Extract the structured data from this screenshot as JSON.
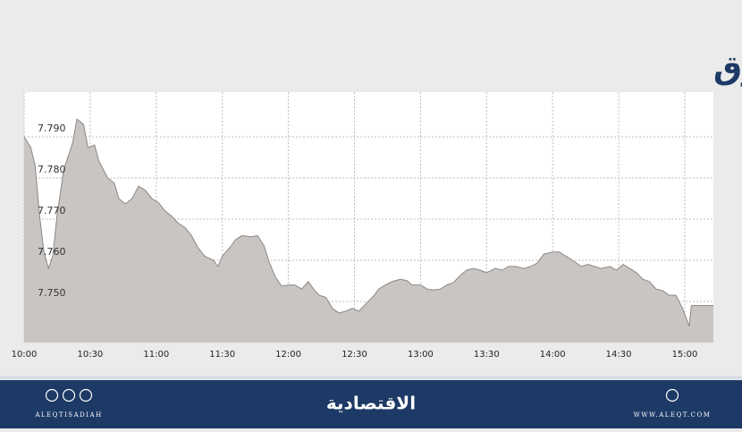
{
  "chart_data": {
    "type": "area",
    "title": "مؤشر السوق",
    "x": [
      "10:00",
      "10:03",
      "10:05",
      "10:07",
      "10:09",
      "10:11",
      "10:13",
      "10:15",
      "10:18",
      "10:22",
      "10:24",
      "10:27",
      "10:29",
      "10:32",
      "10:34",
      "10:38",
      "10:41",
      "10:43",
      "10:46",
      "10:49",
      "10:52",
      "10:55",
      "10:58",
      "11:01",
      "11:04",
      "11:07",
      "11:10",
      "11:13",
      "11:16",
      "11:19",
      "11:22",
      "11:26",
      "11:28",
      "11:30",
      "11:34",
      "11:36",
      "11:39",
      "11:43",
      "11:46",
      "11:49",
      "11:51",
      "11:54",
      "11:57",
      "12:00",
      "12:03",
      "12:06",
      "12:09",
      "12:12",
      "12:14",
      "12:17",
      "12:20",
      "12:23",
      "12:26",
      "12:29",
      "12:32",
      "12:35",
      "12:39",
      "12:41",
      "12:44",
      "12:47",
      "12:51",
      "12:54",
      "12:56",
      "13:00",
      "13:03",
      "13:06",
      "13:09",
      "13:12",
      "13:15",
      "13:18",
      "13:21",
      "13:24",
      "13:27",
      "13:30",
      "13:34",
      "13:37",
      "13:40",
      "13:43",
      "13:47",
      "13:50",
      "13:53",
      "13:56",
      "14:00",
      "14:03",
      "14:06",
      "14:09",
      "14:13",
      "14:16",
      "14:19",
      "14:22",
      "14:26",
      "14:29",
      "14:32",
      "14:35",
      "14:38",
      "14:41",
      "14:44",
      "14:47",
      "14:50",
      "14:53",
      "14:56",
      "14:59",
      "15:02",
      "15:03",
      "15:13"
    ],
    "values": [
      7.79,
      7.7874,
      7.783,
      7.771,
      7.762,
      7.758,
      7.761,
      7.771,
      7.782,
      7.7885,
      7.7943,
      7.793,
      7.7874,
      7.788,
      7.784,
      7.78,
      7.7787,
      7.775,
      7.7737,
      7.775,
      7.778,
      7.777,
      7.775,
      7.774,
      7.772,
      7.7707,
      7.769,
      7.768,
      7.766,
      7.763,
      7.761,
      7.76,
      7.7585,
      7.761,
      7.7635,
      7.765,
      7.766,
      7.7657,
      7.766,
      7.7635,
      7.76,
      7.756,
      7.7537,
      7.754,
      7.754,
      7.753,
      7.7548,
      7.7526,
      7.7515,
      7.751,
      7.7483,
      7.7472,
      7.7476,
      7.7483,
      7.7476,
      7.7493,
      7.7515,
      7.753,
      7.754,
      7.7548,
      7.7554,
      7.755,
      7.754,
      7.754,
      7.753,
      7.7528,
      7.753,
      7.754,
      7.7546,
      7.7563,
      7.7576,
      7.758,
      7.7576,
      7.757,
      7.758,
      7.7576,
      7.7585,
      7.7585,
      7.758,
      7.7585,
      7.7593,
      7.7615,
      7.762,
      7.762,
      7.761,
      7.76,
      7.7585,
      7.759,
      7.7585,
      7.758,
      7.7585,
      7.7576,
      7.759,
      7.758,
      7.757,
      7.7554,
      7.7548,
      7.753,
      7.7526,
      7.7515,
      7.7515,
      7.7483,
      7.744,
      7.749,
      7.749
    ],
    "color": "#c9c5c2",
    "line_color": "#8c8785",
    "xlim": [
      "10:00",
      "15:13"
    ],
    "xticks": [
      "10:00",
      "10:30",
      "11:00",
      "11:30",
      "12:00",
      "12:30",
      "13:00",
      "13:30",
      "14:00",
      "14:30",
      "15:00"
    ],
    "ylim": [
      7.74,
      7.8
    ],
    "yticks": [
      {
        "value": 7.75,
        "label": "7.750"
      },
      {
        "value": 7.76,
        "label": "7.760"
      },
      {
        "value": 7.77,
        "label": "7.770"
      },
      {
        "value": 7.78,
        "label": "7.780"
      },
      {
        "value": 7.79,
        "label": "7.790"
      }
    ],
    "grid": true
  },
  "footer": {
    "left_text": "ALEQTISADIAH",
    "logo": "الاقتصادية",
    "right_text": "WWW.ALEQT.COM"
  }
}
